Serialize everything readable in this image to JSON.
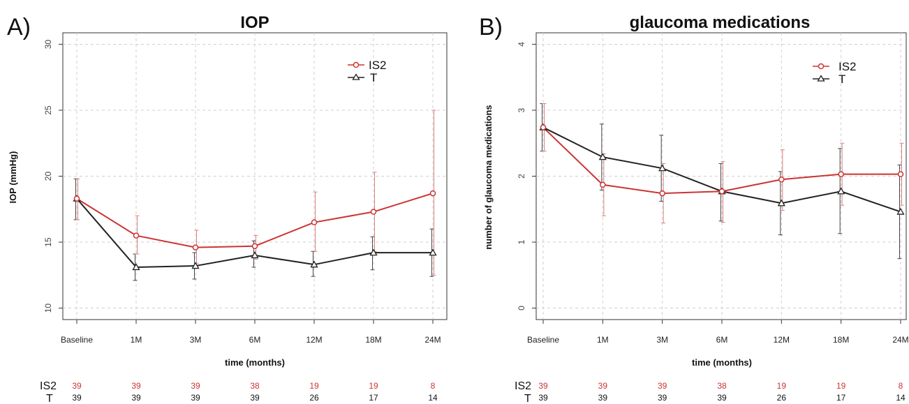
{
  "colors": {
    "IS2": "#cc3333",
    "T": "#222222",
    "IS2_error": "#d98080",
    "T_error": "#444444",
    "grid": "#cfcfcf"
  },
  "chart_data": [
    {
      "panel": "A)",
      "type": "line",
      "title": "IOP",
      "xlabel": "time (months)",
      "ylabel": "IOP (mmHg)",
      "categories": [
        "Baseline",
        "1M",
        "3M",
        "6M",
        "12M",
        "18M",
        "24M"
      ],
      "ylim": [
        10,
        30
      ],
      "yticks": [
        10,
        15,
        20,
        25,
        30
      ],
      "grid": true,
      "legend_position": "top-right",
      "series": [
        {
          "name": "IS2",
          "marker": "circle",
          "values": [
            18.3,
            15.5,
            14.6,
            14.7,
            16.5,
            17.3,
            18.7
          ],
          "err_low": [
            16.7,
            14.1,
            13.4,
            13.7,
            14.3,
            14.3,
            12.5
          ],
          "err_high": [
            19.8,
            17.0,
            15.9,
            15.5,
            18.8,
            20.3,
            25.0
          ]
        },
        {
          "name": "T",
          "marker": "triangle",
          "values": [
            18.3,
            13.1,
            13.2,
            14.0,
            13.3,
            14.2,
            14.2
          ],
          "err_low": [
            16.7,
            12.1,
            12.2,
            13.1,
            12.4,
            12.9,
            12.4
          ],
          "err_high": [
            19.8,
            14.1,
            14.2,
            15.1,
            14.3,
            15.4,
            16.0
          ]
        }
      ],
      "at_risk": {
        "IS2": [
          39,
          39,
          39,
          38,
          19,
          19,
          8
        ],
        "T": [
          39,
          39,
          39,
          39,
          26,
          17,
          14
        ]
      }
    },
    {
      "panel": "B)",
      "type": "line",
      "title": "glaucoma medications",
      "xlabel": "time (months)",
      "ylabel": "number of glaucoma medications",
      "categories": [
        "Baseline",
        "1M",
        "3M",
        "6M",
        "12M",
        "18M",
        "24M"
      ],
      "ylim": [
        0,
        4
      ],
      "yticks": [
        0,
        1,
        2,
        3,
        4
      ],
      "grid": true,
      "legend_position": "top-right",
      "series": [
        {
          "name": "IS2",
          "marker": "circle",
          "values": [
            2.74,
            1.87,
            1.74,
            1.77,
            1.95,
            2.03,
            2.03
          ],
          "err_low": [
            2.38,
            1.4,
            1.29,
            1.3,
            1.48,
            1.56,
            1.56
          ],
          "err_high": [
            3.1,
            2.34,
            2.19,
            2.22,
            2.4,
            2.5,
            2.5
          ]
        },
        {
          "name": "T",
          "marker": "triangle",
          "values": [
            2.74,
            2.29,
            2.12,
            1.77,
            1.59,
            1.77,
            1.46
          ],
          "err_low": [
            2.38,
            1.79,
            1.62,
            1.32,
            1.11,
            1.13,
            0.75
          ],
          "err_high": [
            3.1,
            2.79,
            2.62,
            2.19,
            2.07,
            2.42,
            2.17
          ]
        }
      ],
      "at_risk": {
        "IS2": [
          39,
          39,
          39,
          38,
          19,
          19,
          8
        ],
        "T": [
          39,
          39,
          39,
          39,
          26,
          17,
          14
        ]
      }
    }
  ]
}
